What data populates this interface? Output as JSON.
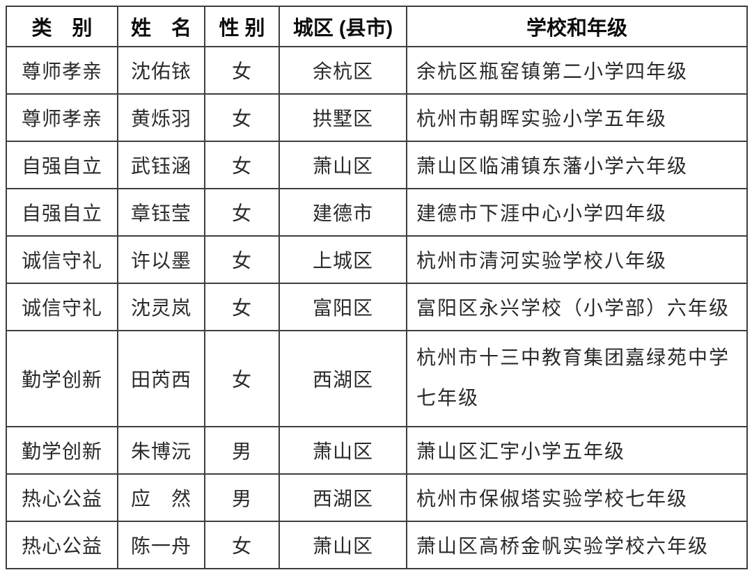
{
  "table": {
    "headers": {
      "category": "类　别",
      "name": "姓　名",
      "gender": "性 别",
      "district": "城区 (县市)",
      "school": "学校和年级"
    },
    "rows": [
      {
        "category": "尊师孝亲",
        "name": "沈佑铱",
        "gender": "女",
        "district": "余杭区",
        "school": "余杭区瓶窑镇第二小学四年级"
      },
      {
        "category": "尊师孝亲",
        "name": "黄烁羽",
        "gender": "女",
        "district": "拱墅区",
        "school": "杭州市朝晖实验小学五年级"
      },
      {
        "category": "自强自立",
        "name": "武钰涵",
        "gender": "女",
        "district": "萧山区",
        "school": "萧山区临浦镇东藩小学六年级"
      },
      {
        "category": "自强自立",
        "name": "章钰莹",
        "gender": "女",
        "district": "建德市",
        "school": "建德市下涯中心小学四年级"
      },
      {
        "category": "诚信守礼",
        "name": "许以墨",
        "gender": "女",
        "district": "上城区",
        "school": "杭州市清河实验学校八年级"
      },
      {
        "category": "诚信守礼",
        "name": "沈灵岚",
        "gender": "女",
        "district": "富阳区",
        "school": "富阳区永兴学校（小学部）六年级"
      },
      {
        "category": "勤学创新",
        "name": "田芮西",
        "gender": "女",
        "district": "西湖区",
        "school": "杭州市十三中教育集团嘉绿苑中学\n七年级"
      },
      {
        "category": "勤学创新",
        "name": "朱博沅",
        "gender": "男",
        "district": "萧山区",
        "school": "萧山区汇宇小学五年级"
      },
      {
        "category": "热心公益",
        "name": "应　然",
        "gender": "男",
        "district": "西湖区",
        "school": "杭州市保俶塔实验学校七年级"
      },
      {
        "category": "热心公益",
        "name": "陈一舟",
        "gender": "女",
        "district": "萧山区",
        "school": "萧山区高桥金帆实验学校六年级"
      }
    ],
    "text_color": "#2a2a2a",
    "header_color": "#0c0c0c",
    "border_color": "#3e3e3e"
  }
}
